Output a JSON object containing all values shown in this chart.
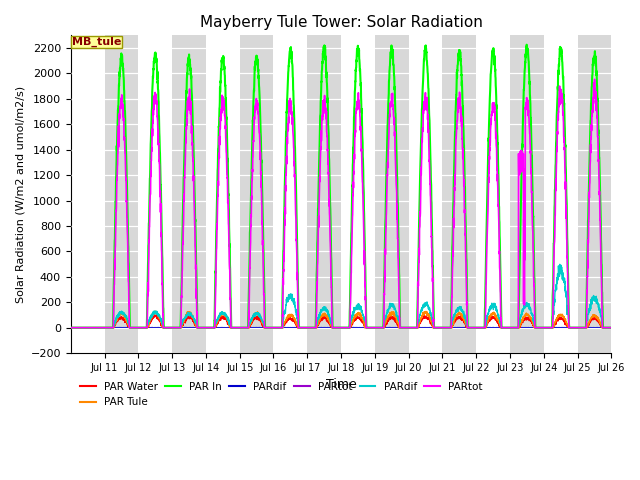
{
  "title": "Mayberry Tule Tower: Solar Radiation",
  "xlabel": "Time",
  "ylabel": "Solar Radiation (W/m2 and umol/m2/s)",
  "ylim": [
    -200,
    2300
  ],
  "yticks": [
    -200,
    0,
    200,
    400,
    600,
    800,
    1000,
    1200,
    1400,
    1600,
    1800,
    2000,
    2200
  ],
  "xtick_labels": [
    "Jul 11",
    "Jul 12",
    "Jul 13",
    "Jul 14",
    "Jul 15",
    "Jul 16",
    "Jul 17",
    "Jul 18",
    "Jul 19",
    "Jul 20",
    "Jul 21",
    "Jul 22",
    "Jul 23",
    "Jul 24",
    "Jul 25",
    "Jul 26"
  ],
  "legend_entries": [
    {
      "label": "PAR Water",
      "color": "#ff0000"
    },
    {
      "label": "PAR Tule",
      "color": "#ff8800"
    },
    {
      "label": "PAR In",
      "color": "#00ff00"
    },
    {
      "label": "PARdif",
      "color": "#0000cc"
    },
    {
      "label": "PARtot",
      "color": "#9900cc"
    },
    {
      "label": "PARdif",
      "color": "#00cccc"
    },
    {
      "label": "PARtot",
      "color": "#ff00ff"
    }
  ],
  "legend_box_label": "MB_tule",
  "background_fig": "#ffffff"
}
